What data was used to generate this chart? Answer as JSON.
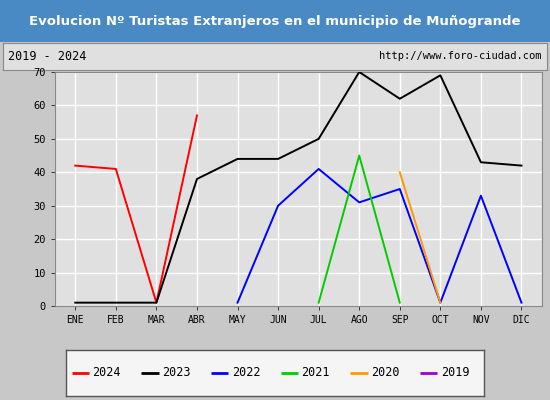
{
  "title": "Evolucion Nº Turistas Extranjeros en el municipio de Muñogrande",
  "subtitle_left": "2019 - 2024",
  "subtitle_right": "http://www.foro-ciudad.com",
  "months": [
    "ENE",
    "FEB",
    "MAR",
    "ABR",
    "MAY",
    "JUN",
    "JUL",
    "AGO",
    "SEP",
    "OCT",
    "NOV",
    "DIC"
  ],
  "ylim": [
    0,
    70
  ],
  "yticks": [
    0,
    10,
    20,
    30,
    40,
    50,
    60,
    70
  ],
  "series": {
    "2024": {
      "color": "#ff0000",
      "data": [
        42,
        41,
        1,
        57,
        null,
        null,
        null,
        null,
        null,
        null,
        null,
        null
      ]
    },
    "2023": {
      "color": "#000000",
      "data": [
        1,
        1,
        1,
        38,
        44,
        44,
        50,
        70,
        62,
        69,
        43,
        42
      ]
    },
    "2022": {
      "color": "#0000ff",
      "data": [
        null,
        null,
        null,
        null,
        1,
        30,
        41,
        31,
        35,
        1,
        33,
        1
      ]
    },
    "2021": {
      "color": "#00cc00",
      "data": [
        null,
        null,
        null,
        null,
        null,
        null,
        1,
        45,
        1,
        null,
        null,
        null
      ]
    },
    "2020": {
      "color": "#ff9900",
      "data": [
        null,
        null,
        null,
        null,
        null,
        null,
        null,
        null,
        40,
        1,
        null,
        null
      ]
    },
    "2019": {
      "color": "#9900cc",
      "data": [
        null,
        null,
        null,
        null,
        null,
        null,
        null,
        null,
        null,
        null,
        null,
        null
      ]
    }
  },
  "legend_order": [
    "2024",
    "2023",
    "2022",
    "2021",
    "2020",
    "2019"
  ],
  "title_bg_color": "#4a8ac4",
  "title_text_color": "#ffffff",
  "subtitle_bg_color": "#e0e0e0",
  "plot_bg_color": "#e0e0e0",
  "grid_color": "#ffffff",
  "border_color": "#888888",
  "legend_bg_color": "#f5f5f5"
}
